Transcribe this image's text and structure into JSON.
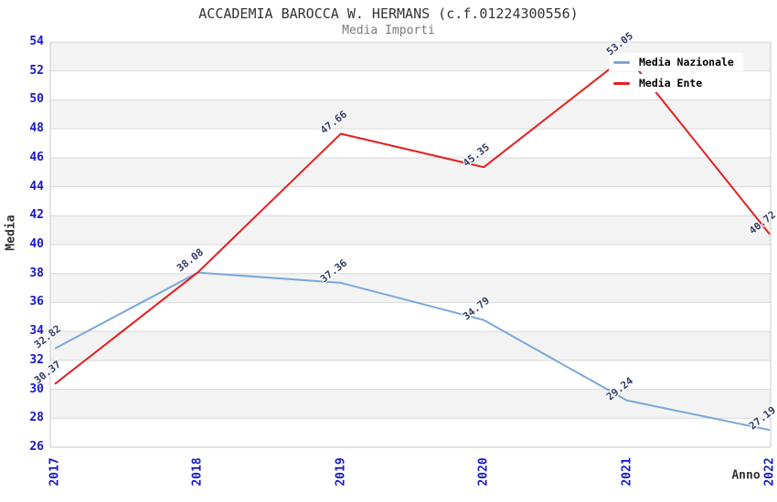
{
  "chart_data": {
    "type": "line",
    "title": "ACCADEMIA BAROCCA W. HERMANS (c.f.01224300556)",
    "subtitle": "Media Importi",
    "xlabel": "Anno",
    "ylabel": "Media",
    "categories": [
      "2017",
      "2018",
      "2019",
      "2020",
      "2021",
      "2022"
    ],
    "ylim": [
      26,
      54
    ],
    "ytick_step": 2,
    "grid": "horizontal gridlines with alternating gray/white bands",
    "legend_position": "top-right",
    "series": [
      {
        "name": "Media Nazionale",
        "color": "#7aa7d9",
        "values": [
          32.82,
          38.07,
          37.36,
          34.79,
          29.24,
          27.19
        ]
      },
      {
        "name": "Media Ente",
        "color": "#e51f1f",
        "values": [
          30.37,
          38.08,
          47.66,
          45.35,
          53.05,
          40.72
        ]
      }
    ],
    "colors": {
      "tick_label": "#1717cc",
      "data_label": "#333b66",
      "band": "#f3f3f3",
      "gridline": "#d9d9d9",
      "spine": "#c9c9c9",
      "title": "#333333",
      "subtitle": "#7a7a7a",
      "axis_title": "#333333"
    }
  }
}
